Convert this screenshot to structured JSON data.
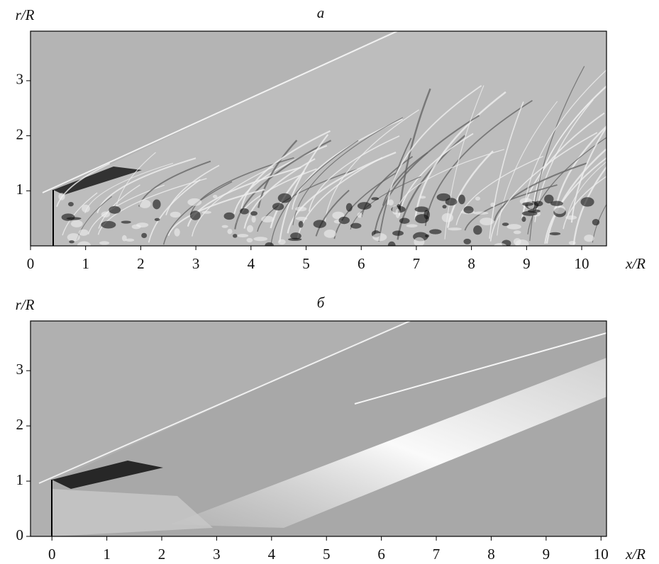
{
  "chart_data": [
    {
      "type": "image",
      "title": "a",
      "xlabel": "x/R",
      "ylabel": "r/R",
      "xlim": [
        0,
        10.45
      ],
      "ylim": [
        0,
        3.9
      ],
      "xticks": [
        0,
        1,
        2,
        3,
        4,
        5,
        6,
        7,
        8,
        9,
        10
      ],
      "yticks": [
        1,
        2,
        3
      ]
    },
    {
      "type": "image",
      "title": "б",
      "xlabel": "x/R",
      "ylabel": "r/R",
      "xlim": [
        -0.39,
        10.1
      ],
      "ylim": [
        0,
        3.9
      ],
      "xticks": [
        0,
        1,
        2,
        3,
        4,
        5,
        6,
        7,
        8,
        9,
        10
      ],
      "yticks": [
        0,
        1,
        2,
        3
      ]
    }
  ]
}
